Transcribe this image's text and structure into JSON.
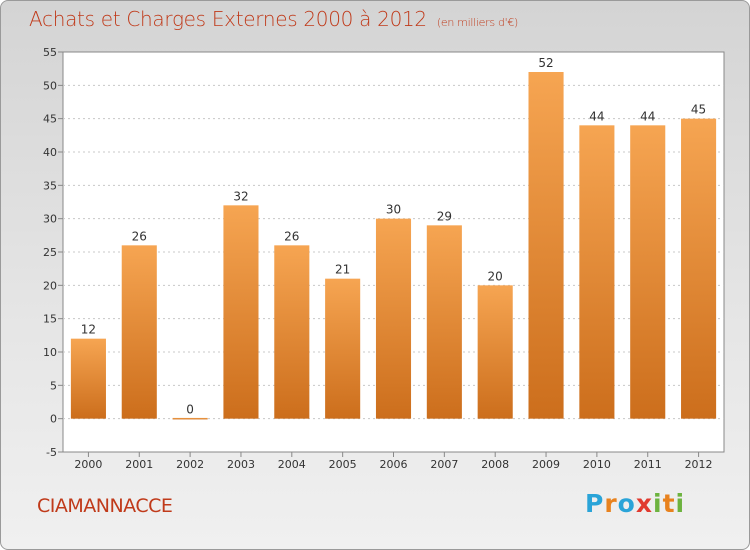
{
  "header": {
    "title": "Achats et Charges Externes 2000 à 2012",
    "unit": "(en milliers d'€)"
  },
  "footer": {
    "commune": "CIAMANNACCE",
    "logo_text": "Proxiti"
  },
  "colors": {
    "bar_top": "#f6a552",
    "bar_bottom": "#cc6e1c",
    "title": "#c03a1a",
    "grid": "#c8c8c8"
  },
  "chart_data": {
    "type": "bar",
    "title": "Achats et Charges Externes 2000 à 2012",
    "subtitle": "(en milliers d'€)",
    "xlabel": "",
    "ylabel": "",
    "categories": [
      "2000",
      "2001",
      "2002",
      "2003",
      "2004",
      "2005",
      "2006",
      "2007",
      "2008",
      "2009",
      "2010",
      "2011",
      "2012"
    ],
    "values": [
      12,
      26,
      0,
      32,
      26,
      21,
      30,
      29,
      20,
      52,
      44,
      44,
      45
    ],
    "data_labels": [
      "12",
      "26",
      "0",
      "32",
      "26",
      "21",
      "30",
      "29",
      "20",
      "52",
      "44",
      "44",
      "45"
    ],
    "ylim": [
      -5,
      55
    ],
    "yticks": [
      -5,
      0,
      5,
      10,
      15,
      20,
      25,
      30,
      35,
      40,
      45,
      50,
      55
    ],
    "grid": true,
    "legend": "none"
  }
}
